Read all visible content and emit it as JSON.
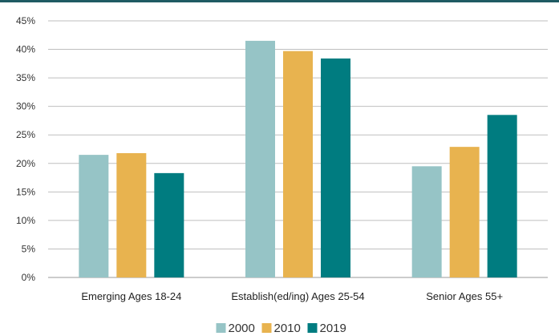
{
  "chart_data": {
    "type": "bar",
    "categories": [
      "Emerging Ages 18-24",
      "Establish(ed/ing) Ages 25-54",
      "Senior Ages 55+"
    ],
    "series": [
      {
        "name": "2000",
        "color": "#96c4c6",
        "values": [
          21.5,
          41.5,
          19.5
        ]
      },
      {
        "name": "2010",
        "color": "#e8b34f",
        "values": [
          21.8,
          39.7,
          22.9
        ]
      },
      {
        "name": "2019",
        "color": "#007c80",
        "values": [
          18.3,
          38.4,
          28.5
        ]
      }
    ],
    "ylim": [
      0,
      45
    ],
    "yticks": [
      "0%",
      "5%",
      "10%",
      "15%",
      "20%",
      "25%",
      "30%",
      "35%",
      "40%",
      "45%"
    ],
    "title": "",
    "xlabel": "",
    "ylabel": "",
    "grid": true,
    "legend_position": "bottom-center"
  }
}
